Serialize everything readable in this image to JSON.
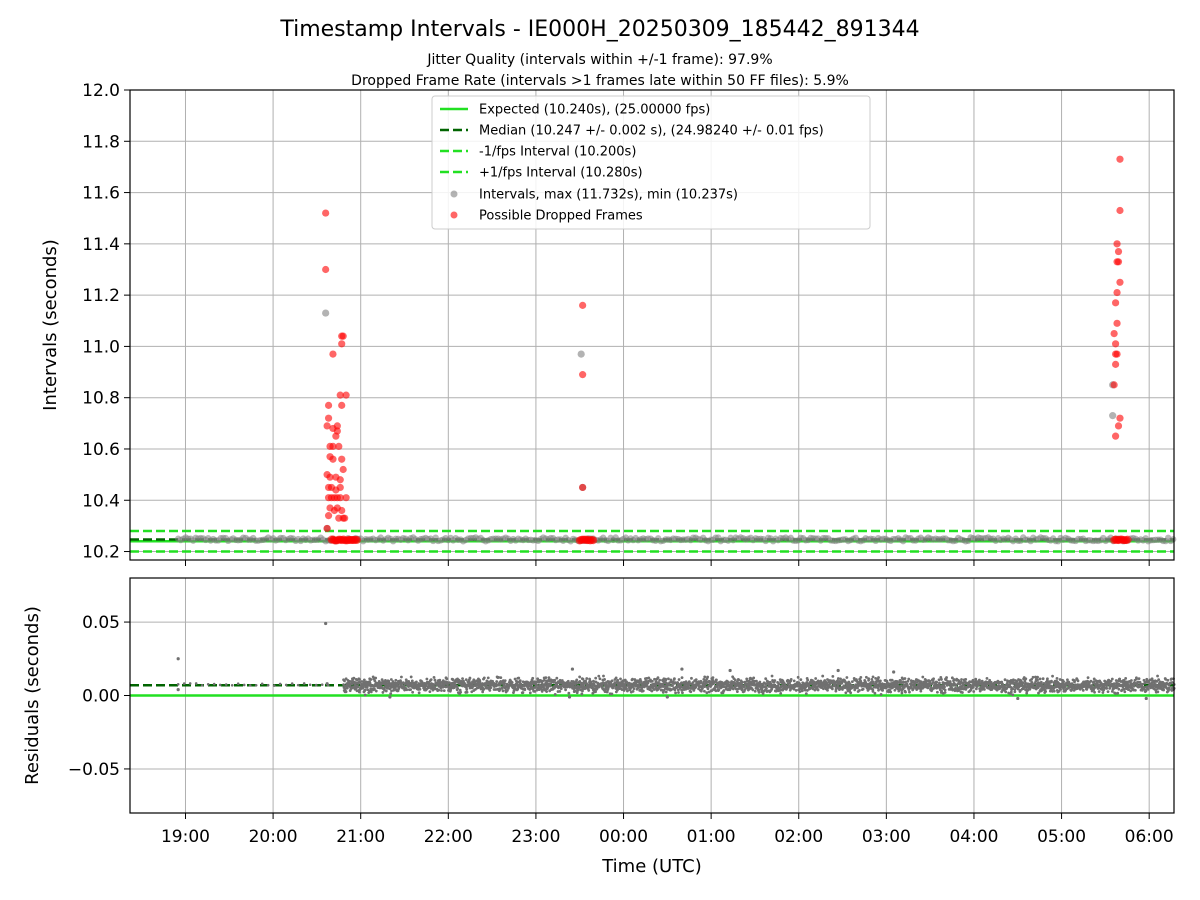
{
  "chart_data": {
    "type": "scatter",
    "title": "Timestamp Intervals - IE000H_20250309_185442_891344",
    "subtitle_lines": [
      "Jitter Quality (intervals within +/-1 frame): 97.9%",
      "Dropped Frame Rate (intervals >1 frames late within 50 FF files): 5.9%"
    ],
    "xlabel": "Time (UTC)",
    "x_ticks": [
      "19:00",
      "20:00",
      "21:00",
      "22:00",
      "23:00",
      "00:00",
      "01:00",
      "02:00",
      "03:00",
      "04:00",
      "05:00",
      "06:00"
    ],
    "x_range": [
      "18:22",
      "06:17"
    ],
    "grid": true,
    "panels": [
      {
        "id": "intervals",
        "ylabel": "Intervals (seconds)",
        "ylim": [
          10.167,
          12.0
        ],
        "y_ticks": [
          10.2,
          10.4,
          10.6,
          10.8,
          11.0,
          11.2,
          11.4,
          11.6,
          11.8,
          12.0
        ],
        "y_tick_labels": [
          "10.2",
          "10.4",
          "10.6",
          "10.8",
          "11.0",
          "11.2",
          "11.4",
          "11.6",
          "11.8",
          "12.0"
        ],
        "legend_position": "top-center",
        "lines": [
          {
            "name": "Expected (10.240s), (25.00000 fps)",
            "y": 10.24,
            "style": "solid",
            "color": "#22e022"
          },
          {
            "name": "Median (10.247 +/- 0.002 s), (24.98240 +/- 0.01 fps)",
            "y": 10.247,
            "style": "dashed",
            "color": "#006400"
          },
          {
            "name": "-1/fps Interval (10.200s)",
            "y": 10.2,
            "style": "dashed",
            "color": "#22e022"
          },
          {
            "name": "+1/fps Interval (10.280s)",
            "y": 10.28,
            "style": "dashed",
            "color": "#22e022"
          }
        ],
        "scatter_series": [
          {
            "name": "Intervals, max (11.732s), min (10.237s)",
            "color": "#808080",
            "band": {
              "x_start": "18:55",
              "x_end": "06:17",
              "y_min": 10.24,
              "y_max": 10.255
            },
            "points": [
              {
                "x": "20:36",
                "y": 11.13
              },
              {
                "x": "23:31",
                "y": 10.97
              },
              {
                "x": "23:32",
                "y": 10.45
              },
              {
                "x": "20:37",
                "y": 10.29
              },
              {
                "x": "05:35",
                "y": 10.73
              },
              {
                "x": "05:35",
                "y": 10.85
              }
            ]
          },
          {
            "name": "Possible Dropped Frames",
            "color": "#ff0000",
            "clusters": [
              {
                "x_start": "20:40",
                "x_end": "20:58",
                "y": 10.245
              },
              {
                "x_start": "23:30",
                "x_end": "23:40",
                "y": 10.245
              },
              {
                "x_start": "05:36",
                "x_end": "05:46",
                "y": 10.245
              }
            ],
            "points": [
              {
                "x": "20:36",
                "y": 11.52
              },
              {
                "x": "20:36",
                "y": 11.3
              },
              {
                "x": "20:41",
                "y": 10.97
              },
              {
                "x": "20:47",
                "y": 11.04
              },
              {
                "x": "20:48",
                "y": 11.04
              },
              {
                "x": "20:47",
                "y": 11.01
              },
              {
                "x": "20:46",
                "y": 10.81
              },
              {
                "x": "20:50",
                "y": 10.81
              },
              {
                "x": "20:38",
                "y": 10.77
              },
              {
                "x": "20:47",
                "y": 10.77
              },
              {
                "x": "20:38",
                "y": 10.72
              },
              {
                "x": "20:37",
                "y": 10.69
              },
              {
                "x": "20:41",
                "y": 10.68
              },
              {
                "x": "20:44",
                "y": 10.69
              },
              {
                "x": "20:44",
                "y": 10.67
              },
              {
                "x": "20:43",
                "y": 10.65
              },
              {
                "x": "20:39",
                "y": 10.61
              },
              {
                "x": "20:41",
                "y": 10.61
              },
              {
                "x": "20:45",
                "y": 10.61
              },
              {
                "x": "20:39",
                "y": 10.57
              },
              {
                "x": "20:41",
                "y": 10.56
              },
              {
                "x": "20:47",
                "y": 10.56
              },
              {
                "x": "20:48",
                "y": 10.52
              },
              {
                "x": "20:37",
                "y": 10.5
              },
              {
                "x": "20:39",
                "y": 10.49
              },
              {
                "x": "20:43",
                "y": 10.49
              },
              {
                "x": "20:46",
                "y": 10.48
              },
              {
                "x": "20:38",
                "y": 10.45
              },
              {
                "x": "20:40",
                "y": 10.45
              },
              {
                "x": "20:43",
                "y": 10.44
              },
              {
                "x": "20:46",
                "y": 10.45
              },
              {
                "x": "20:38",
                "y": 10.41
              },
              {
                "x": "20:40",
                "y": 10.41
              },
              {
                "x": "20:42",
                "y": 10.41
              },
              {
                "x": "20:44",
                "y": 10.41
              },
              {
                "x": "20:46",
                "y": 10.41
              },
              {
                "x": "20:50",
                "y": 10.41
              },
              {
                "x": "20:39",
                "y": 10.37
              },
              {
                "x": "20:42",
                "y": 10.36
              },
              {
                "x": "20:44",
                "y": 10.37
              },
              {
                "x": "20:47",
                "y": 10.36
              },
              {
                "x": "20:38",
                "y": 10.34
              },
              {
                "x": "20:45",
                "y": 10.33
              },
              {
                "x": "20:48",
                "y": 10.33
              },
              {
                "x": "20:49",
                "y": 10.33
              },
              {
                "x": "20:37",
                "y": 10.29
              },
              {
                "x": "23:32",
                "y": 11.16
              },
              {
                "x": "23:32",
                "y": 10.89
              },
              {
                "x": "23:32",
                "y": 10.45
              },
              {
                "x": "05:40",
                "y": 11.73
              },
              {
                "x": "05:40",
                "y": 11.53
              },
              {
                "x": "05:38",
                "y": 11.4
              },
              {
                "x": "05:39",
                "y": 11.37
              },
              {
                "x": "05:38",
                "y": 11.33
              },
              {
                "x": "05:39",
                "y": 11.33
              },
              {
                "x": "05:40",
                "y": 11.25
              },
              {
                "x": "05:38",
                "y": 11.21
              },
              {
                "x": "05:37",
                "y": 11.17
              },
              {
                "x": "05:38",
                "y": 11.09
              },
              {
                "x": "05:36",
                "y": 11.05
              },
              {
                "x": "05:37",
                "y": 11.01
              },
              {
                "x": "05:37",
                "y": 10.97
              },
              {
                "x": "05:38",
                "y": 10.97
              },
              {
                "x": "05:37",
                "y": 10.93
              },
              {
                "x": "05:36",
                "y": 10.85
              },
              {
                "x": "05:40",
                "y": 10.72
              },
              {
                "x": "05:39",
                "y": 10.69
              },
              {
                "x": "05:37",
                "y": 10.65
              }
            ]
          }
        ]
      },
      {
        "id": "residuals",
        "ylabel": "Residuals (seconds)",
        "ylim": [
          -0.08,
          0.08
        ],
        "y_ticks": [
          0.05,
          0.0,
          -0.05
        ],
        "y_tick_labels": [
          "0.05",
          "0.00",
          "−0.05"
        ],
        "lines": [
          {
            "y": 0.0,
            "style": "solid",
            "color": "#22e022"
          },
          {
            "y": 0.007,
            "style": "dashed",
            "color": "#006400"
          }
        ],
        "scatter_series": [
          {
            "color": "#707070",
            "band": {
              "x_start": "20:48",
              "x_end": "06:17",
              "y_min": 0.0,
              "y_max": 0.014,
              "y_center": 0.007
            },
            "sparse_band": {
              "x_start": "18:55",
              "x_end": "20:40",
              "y": 0.0075
            },
            "points": [
              {
                "x": "18:55",
                "y": 0.025
              },
              {
                "x": "18:55",
                "y": 0.004
              },
              {
                "x": "20:36",
                "y": 0.049
              },
              {
                "x": "20:37",
                "y": 0.008
              },
              {
                "x": "23:25",
                "y": 0.018
              },
              {
                "x": "00:40",
                "y": 0.018
              },
              {
                "x": "01:13",
                "y": 0.017
              },
              {
                "x": "02:27",
                "y": 0.017
              },
              {
                "x": "04:30",
                "y": -0.002
              },
              {
                "x": "05:58",
                "y": -0.002
              },
              {
                "x": "23:23",
                "y": -0.001
              },
              {
                "x": "00:30",
                "y": -0.001
              },
              {
                "x": "21:20",
                "y": -0.001
              },
              {
                "x": "03:05",
                "y": 0.016
              }
            ]
          }
        ]
      }
    ]
  },
  "colors": {
    "expected": "#22e022",
    "median": "#006400",
    "interval_points": "#808080",
    "dropped_points": "#ff0000",
    "residual_points": "#707070",
    "grid": "#b0b0b0"
  }
}
